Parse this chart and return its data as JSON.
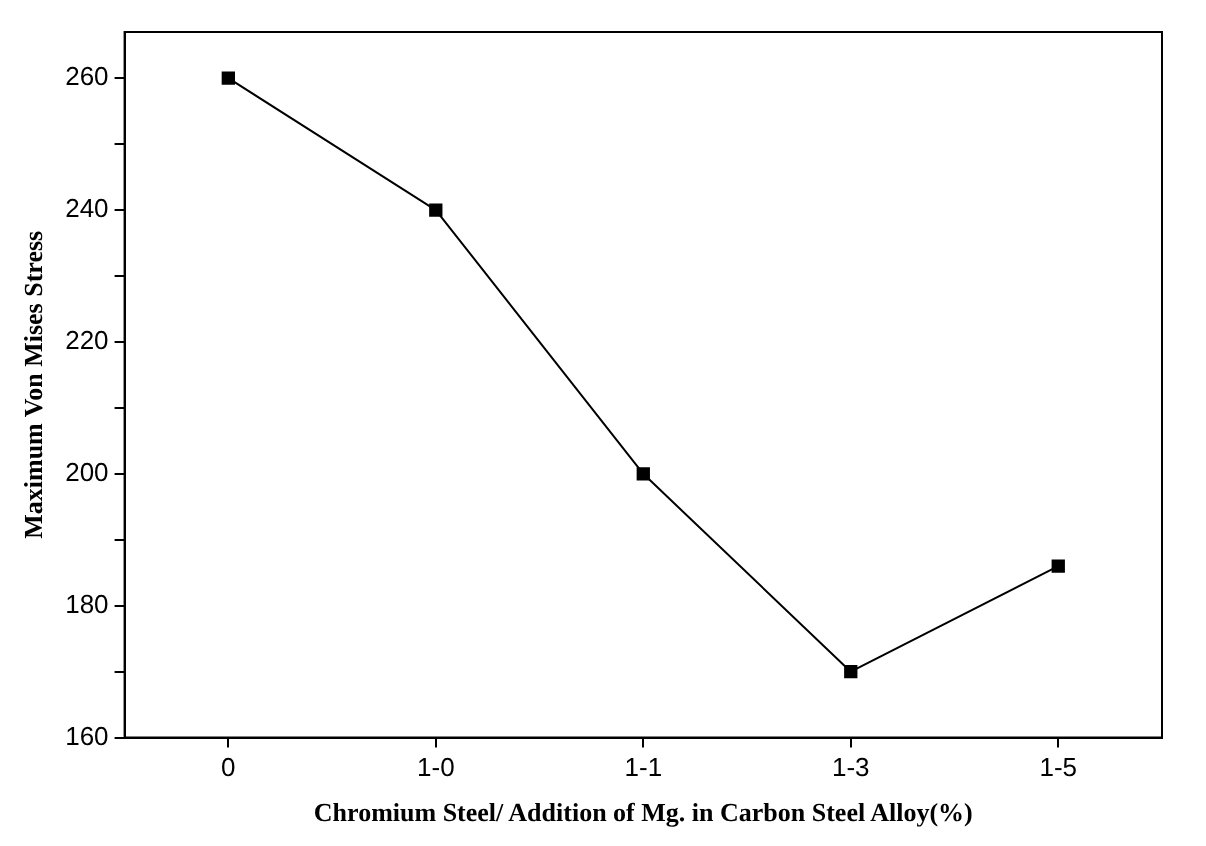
{
  "chart_data": {
    "type": "line",
    "xlabel": "Chromium Steel/ Addition of Mg. in Carbon Steel Alloy(%)",
    "ylabel": "Maximum Von Mises Stress",
    "categories": [
      "0",
      "1-0",
      "1-1",
      "1-3",
      "1-5"
    ],
    "series": [
      {
        "color": "#000000",
        "values": [
          260,
          240,
          200,
          170,
          186
        ]
      }
    ],
    "ylim": [
      160,
      267
    ],
    "yticks": [
      160,
      {
        "value": 170,
        "label": null
      },
      180,
      {
        "value": 190,
        "label": null
      },
      200,
      {
        "value": 210,
        "label": null
      },
      220,
      {
        "value": 230,
        "label": null
      },
      240,
      {
        "value": 250,
        "label": null
      },
      260
    ],
    "grid": false,
    "legend": false,
    "marker": "square",
    "line_style": "solid"
  }
}
